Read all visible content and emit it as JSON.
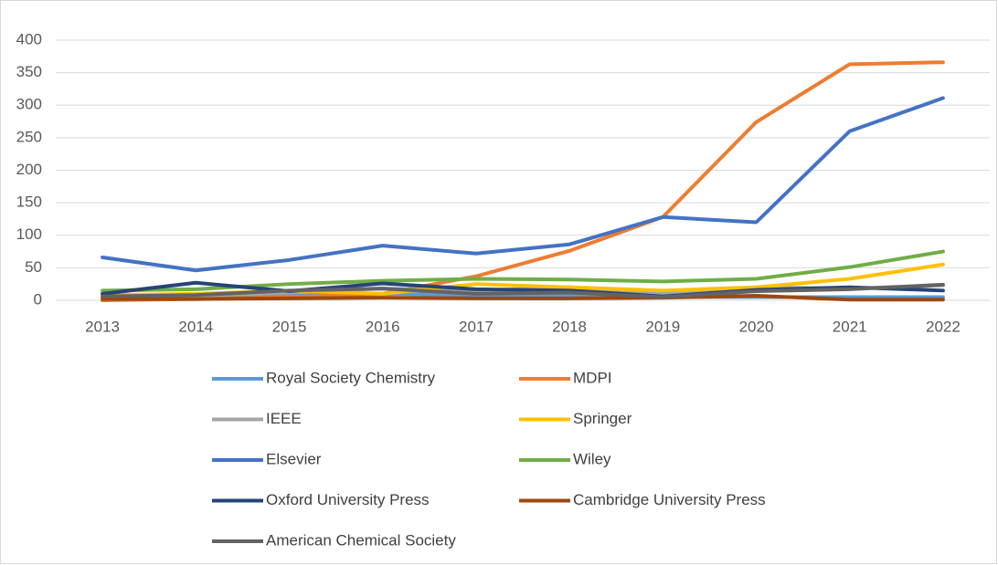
{
  "chart_data": {
    "type": "line",
    "categories": [
      "2013",
      "2014",
      "2015",
      "2016",
      "2017",
      "2018",
      "2019",
      "2020",
      "2021",
      "2022"
    ],
    "ylim": [
      0,
      400
    ],
    "yticks": [
      0,
      50,
      100,
      150,
      200,
      250,
      300,
      350,
      400
    ],
    "grid": true,
    "legend": "bottom",
    "series": [
      {
        "name": "Royal Society Chemistry",
        "color": "#5b9bd5",
        "values": [
          5,
          6,
          8,
          10,
          8,
          8,
          5,
          5,
          5,
          5
        ]
      },
      {
        "name": "MDPI",
        "color": "#ed7d31",
        "values": [
          0,
          2,
          5,
          10,
          37,
          76,
          128,
          274,
          363,
          366
        ]
      },
      {
        "name": "IEEE",
        "color": "#a5a5a5",
        "values": [
          8,
          7,
          12,
          18,
          15,
          20,
          10,
          20,
          18,
          23
        ]
      },
      {
        "name": "Springer",
        "color": "#ffc000",
        "values": [
          8,
          10,
          15,
          10,
          25,
          20,
          15,
          20,
          33,
          55
        ]
      },
      {
        "name": "Elsevier",
        "color": "#4472c4",
        "values": [
          66,
          46,
          62,
          84,
          72,
          86,
          128,
          120,
          260,
          311
        ]
      },
      {
        "name": "Wiley",
        "color": "#70ad47",
        "values": [
          15,
          17,
          25,
          30,
          33,
          32,
          29,
          33,
          51,
          75
        ]
      },
      {
        "name": "Oxford University Press",
        "color": "#264478",
        "values": [
          10,
          27,
          14,
          26,
          17,
          15,
          6,
          16,
          20,
          15
        ]
      },
      {
        "name": "Cambridge University Press",
        "color": "#9e480e",
        "values": [
          2,
          2,
          3,
          4,
          3,
          3,
          4,
          7,
          1,
          1
        ]
      },
      {
        "name": "American Chemical Society",
        "color": "#636363",
        "values": [
          6,
          8,
          15,
          18,
          10,
          12,
          5,
          14,
          17,
          24
        ]
      }
    ]
  }
}
